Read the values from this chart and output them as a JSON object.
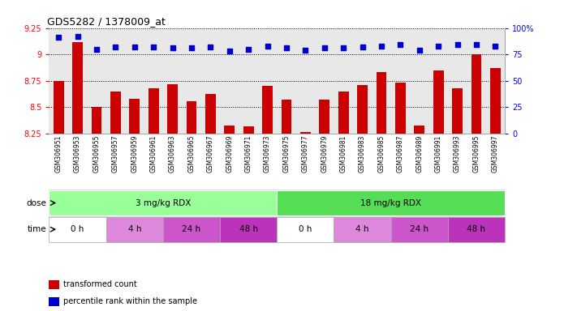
{
  "title": "GDS5282 / 1378009_at",
  "samples": [
    "GSM306951",
    "GSM306953",
    "GSM306955",
    "GSM306957",
    "GSM306959",
    "GSM306961",
    "GSM306963",
    "GSM306965",
    "GSM306967",
    "GSM306969",
    "GSM306971",
    "GSM306973",
    "GSM306975",
    "GSM306977",
    "GSM306979",
    "GSM306981",
    "GSM306983",
    "GSM306985",
    "GSM306987",
    "GSM306989",
    "GSM306991",
    "GSM306993",
    "GSM306995",
    "GSM306997"
  ],
  "bar_values": [
    8.75,
    9.12,
    8.5,
    8.65,
    8.58,
    8.68,
    8.72,
    8.56,
    8.63,
    8.33,
    8.32,
    8.7,
    8.57,
    8.27,
    8.57,
    8.65,
    8.71,
    8.83,
    8.73,
    8.33,
    8.85,
    8.68,
    9.0,
    8.87
  ],
  "percentile_values": [
    91,
    92,
    80,
    82,
    82,
    82,
    81,
    81,
    82,
    78,
    80,
    83,
    81,
    79,
    81,
    81,
    82,
    83,
    84,
    79,
    83,
    84,
    84,
    83
  ],
  "ylim_left": [
    8.25,
    9.25
  ],
  "ylim_right": [
    0,
    100
  ],
  "yticks_left": [
    8.25,
    8.5,
    8.75,
    9.0,
    9.25
  ],
  "ytick_labels_left": [
    "8.25",
    "8.5",
    "8.75",
    "9",
    "9.25"
  ],
  "yticks_right": [
    0,
    25,
    50,
    75,
    100
  ],
  "ytick_labels_right": [
    "0",
    "25",
    "50",
    "75",
    "100%"
  ],
  "bar_color": "#cc0000",
  "dot_color": "#0000cc",
  "plot_bg_color": "#e8e8e8",
  "dose_groups": [
    {
      "text": "3 mg/kg RDX",
      "start": 0,
      "end": 12,
      "color": "#99ff99"
    },
    {
      "text": "18 mg/kg RDX",
      "start": 12,
      "end": 24,
      "color": "#55dd55"
    }
  ],
  "time_groups": [
    {
      "text": "0 h",
      "start": 0,
      "end": 3,
      "color": "#ffffff"
    },
    {
      "text": "4 h",
      "start": 3,
      "end": 6,
      "color": "#dd88dd"
    },
    {
      "text": "24 h",
      "start": 6,
      "end": 9,
      "color": "#cc55cc"
    },
    {
      "text": "48 h",
      "start": 9,
      "end": 12,
      "color": "#bb33bb"
    },
    {
      "text": "0 h",
      "start": 12,
      "end": 15,
      "color": "#ffffff"
    },
    {
      "text": "4 h",
      "start": 15,
      "end": 18,
      "color": "#dd88dd"
    },
    {
      "text": "24 h",
      "start": 18,
      "end": 21,
      "color": "#cc55cc"
    },
    {
      "text": "48 h",
      "start": 21,
      "end": 24,
      "color": "#bb33bb"
    }
  ],
  "legend": [
    {
      "color": "#cc0000",
      "label": "transformed count"
    },
    {
      "color": "#0000cc",
      "label": "percentile rank within the sample"
    }
  ]
}
